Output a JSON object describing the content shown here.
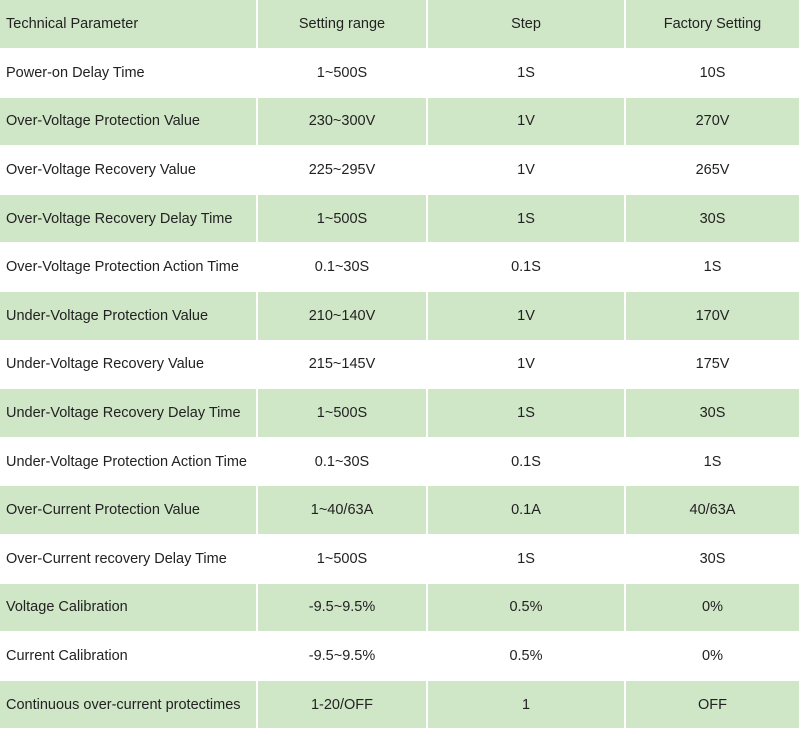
{
  "header": {
    "col1": "Technical Parameter",
    "col2": "Setting range",
    "col3": "Step",
    "col4": "Factory Setting"
  },
  "rows": [
    {
      "parameter": "Power-on Delay Time",
      "range": "1~500S",
      "step": "1S",
      "factory": "10S"
    },
    {
      "parameter": "Over-Voltage Protection Value",
      "range": "230~300V",
      "step": "1V",
      "factory": "270V"
    },
    {
      "parameter": "Over-Voltage Recovery Value",
      "range": "225~295V",
      "step": "1V",
      "factory": "265V"
    },
    {
      "parameter": "Over-Voltage Recovery Delay Time",
      "range": "1~500S",
      "step": "1S",
      "factory": "30S"
    },
    {
      "parameter": "Over-Voltage Protection Action Time",
      "range": "0.1~30S",
      "step": "0.1S",
      "factory": "1S"
    },
    {
      "parameter": "Under-Voltage Protection Value",
      "range": "210~140V",
      "step": "1V",
      "factory": "170V"
    },
    {
      "parameter": "Under-Voltage Recovery Value",
      "range": "215~145V",
      "step": "1V",
      "factory": "175V"
    },
    {
      "parameter": "Under-Voltage Recovery Delay Time",
      "range": "1~500S",
      "step": "1S",
      "factory": "30S"
    },
    {
      "parameter": "Under-Voltage Protection Action Time",
      "range": "0.1~30S",
      "step": "0.1S",
      "factory": "1S"
    },
    {
      "parameter": "Over-Current Protection Value",
      "range": "1~40/63A",
      "step": "0.1A",
      "factory": "40/63A"
    },
    {
      "parameter": "Over-Current recovery Delay Time",
      "range": "1~500S",
      "step": "1S",
      "factory": "30S"
    },
    {
      "parameter": "Voltage Calibration",
      "range": "-9.5~9.5%",
      "step": "0.5%",
      "factory": "0%"
    },
    {
      "parameter": "Current Calibration",
      "range": "-9.5~9.5%",
      "step": "0.5%",
      "factory": "0%"
    },
    {
      "parameter": "Continuous over-current protectimes",
      "range": "1-20/OFF",
      "step": "1",
      "factory": "OFF"
    }
  ],
  "colors": {
    "green_row": "#cfe6c7",
    "white_row": "#ffffff",
    "text": "#222222"
  }
}
